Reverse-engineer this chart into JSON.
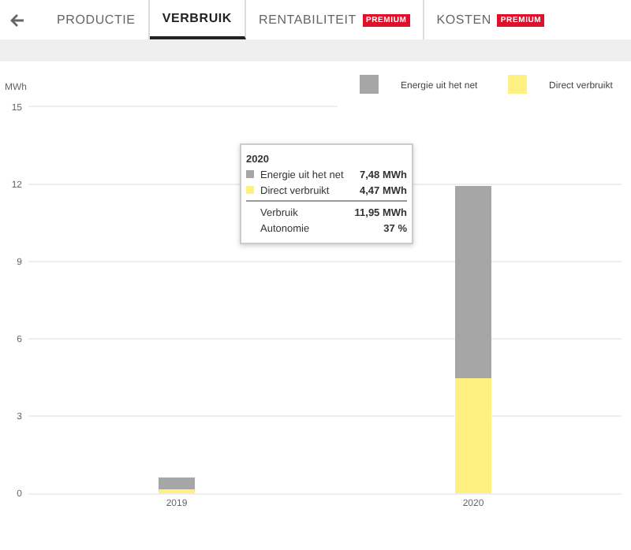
{
  "chart_data": {
    "type": "bar",
    "stacked": true,
    "ylabel": "MWh",
    "categories": [
      "2019",
      "2020"
    ],
    "series": [
      {
        "name": "Direct verbruikt",
        "color": "#fff082",
        "values": [
          0.15,
          4.47
        ]
      },
      {
        "name": "Energie uit het net",
        "color": "#a6a6a6",
        "values": [
          0.45,
          7.48
        ]
      }
    ],
    "ylim": [
      0,
      15
    ],
    "yticks": [
      0,
      3,
      6,
      9,
      12,
      15
    ],
    "grid": "y",
    "legend": "top right",
    "annotations": [
      "PRODUCTIE",
      "VERBRUIK",
      "RENTABILITEIT",
      "PREMIUM",
      "KOSTEN",
      "PREMIUM",
      "2020",
      "Energie uit het net",
      "7,48 MWh",
      "Direct verbruikt",
      "4,47 MWh",
      "Verbruik",
      "11,95 MWh",
      "Autonomie",
      "37 %"
    ]
  }
}
